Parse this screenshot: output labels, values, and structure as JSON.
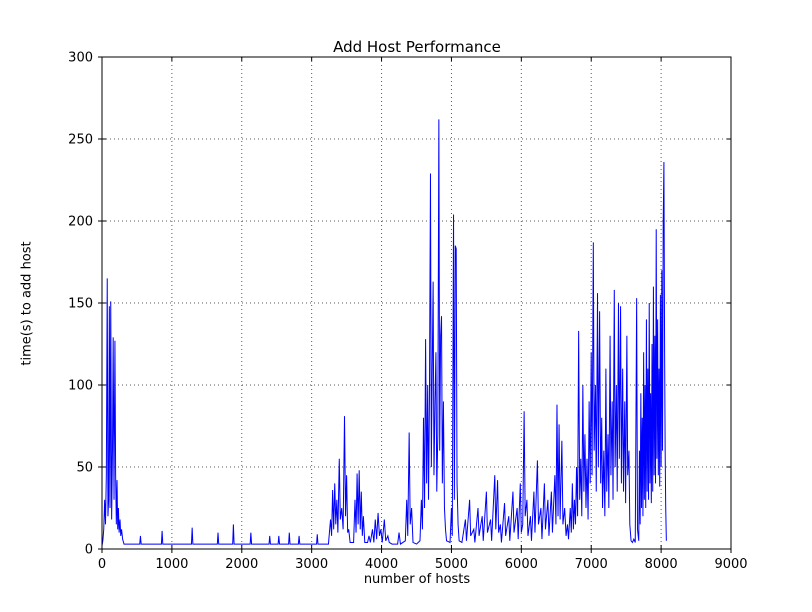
{
  "chart_data": {
    "type": "line",
    "title": "Add Host Performance",
    "xlabel": "number of hosts",
    "ylabel": "time(s) to add host",
    "xlim": [
      0,
      9000
    ],
    "ylim": [
      0,
      300
    ],
    "xticks": [
      0,
      1000,
      2000,
      3000,
      4000,
      5000,
      6000,
      7000,
      8000,
      9000
    ],
    "yticks": [
      0,
      50,
      100,
      150,
      200,
      250,
      300
    ],
    "grid": "dotted",
    "legend": "none",
    "line_color": "#0000ff",
    "frame_color": "#000000",
    "background_color": "#ffffff",
    "points": [
      [
        0,
        2
      ],
      [
        12,
        5
      ],
      [
        25,
        12
      ],
      [
        38,
        30
      ],
      [
        50,
        15
      ],
      [
        62,
        45
      ],
      [
        75,
        165
      ],
      [
        85,
        20
      ],
      [
        95,
        30
      ],
      [
        105,
        148
      ],
      [
        115,
        25
      ],
      [
        125,
        151
      ],
      [
        138,
        18
      ],
      [
        150,
        60
      ],
      [
        160,
        129
      ],
      [
        172,
        30
      ],
      [
        185,
        127
      ],
      [
        195,
        45
      ],
      [
        205,
        15
      ],
      [
        215,
        42
      ],
      [
        225,
        12
      ],
      [
        235,
        25
      ],
      [
        245,
        10
      ],
      [
        258,
        18
      ],
      [
        268,
        8
      ],
      [
        280,
        12
      ],
      [
        295,
        6
      ],
      [
        315,
        3
      ],
      [
        540,
        3
      ],
      [
        550,
        8
      ],
      [
        560,
        3
      ],
      [
        850,
        3
      ],
      [
        860,
        11
      ],
      [
        870,
        3
      ],
      [
        1280,
        3
      ],
      [
        1290,
        13
      ],
      [
        1300,
        3
      ],
      [
        1650,
        3
      ],
      [
        1660,
        10
      ],
      [
        1670,
        3
      ],
      [
        1870,
        3
      ],
      [
        1880,
        15
      ],
      [
        1890,
        3
      ],
      [
        2120,
        3
      ],
      [
        2130,
        10
      ],
      [
        2140,
        3
      ],
      [
        2390,
        3
      ],
      [
        2400,
        8
      ],
      [
        2410,
        3
      ],
      [
        2520,
        3
      ],
      [
        2530,
        8
      ],
      [
        2540,
        3
      ],
      [
        2670,
        3
      ],
      [
        2680,
        10
      ],
      [
        2690,
        3
      ],
      [
        2810,
        3
      ],
      [
        2820,
        8
      ],
      [
        2830,
        3
      ],
      [
        3070,
        3
      ],
      [
        3080,
        9
      ],
      [
        3090,
        3
      ],
      [
        3240,
        3
      ],
      [
        3270,
        18
      ],
      [
        3285,
        8
      ],
      [
        3300,
        36
      ],
      [
        3315,
        12
      ],
      [
        3330,
        40
      ],
      [
        3345,
        15
      ],
      [
        3360,
        30
      ],
      [
        3375,
        10
      ],
      [
        3395,
        55
      ],
      [
        3410,
        18
      ],
      [
        3430,
        25
      ],
      [
        3450,
        12
      ],
      [
        3470,
        81
      ],
      [
        3485,
        20
      ],
      [
        3500,
        45
      ],
      [
        3515,
        10
      ],
      [
        3530,
        12
      ],
      [
        3550,
        4
      ],
      [
        3600,
        4
      ],
      [
        3620,
        30
      ],
      [
        3635,
        10
      ],
      [
        3650,
        46
      ],
      [
        3665,
        15
      ],
      [
        3680,
        48
      ],
      [
        3695,
        12
      ],
      [
        3710,
        35
      ],
      [
        3725,
        8
      ],
      [
        3740,
        20
      ],
      [
        3760,
        4
      ],
      [
        3800,
        4
      ],
      [
        3820,
        8
      ],
      [
        3840,
        4
      ],
      [
        3870,
        12
      ],
      [
        3890,
        4
      ],
      [
        3910,
        18
      ],
      [
        3930,
        6
      ],
      [
        3950,
        22
      ],
      [
        3970,
        8
      ],
      [
        3990,
        12
      ],
      [
        4010,
        4
      ],
      [
        4040,
        18
      ],
      [
        4060,
        5
      ],
      [
        4090,
        8
      ],
      [
        4110,
        4
      ],
      [
        4150,
        3
      ],
      [
        4230,
        3
      ],
      [
        4250,
        10
      ],
      [
        4270,
        3
      ],
      [
        4340,
        5
      ],
      [
        4360,
        30
      ],
      [
        4375,
        8
      ],
      [
        4395,
        71
      ],
      [
        4410,
        15
      ],
      [
        4430,
        25
      ],
      [
        4450,
        4
      ],
      [
        4500,
        3
      ],
      [
        4550,
        5
      ],
      [
        4570,
        30
      ],
      [
        4585,
        12
      ],
      [
        4600,
        80
      ],
      [
        4615,
        25
      ],
      [
        4630,
        128
      ],
      [
        4645,
        40
      ],
      [
        4660,
        100
      ],
      [
        4672,
        30
      ],
      [
        4685,
        90
      ],
      [
        4700,
        229
      ],
      [
        4712,
        50
      ],
      [
        4725,
        110
      ],
      [
        4738,
        163
      ],
      [
        4750,
        45
      ],
      [
        4765,
        90
      ],
      [
        4778,
        120
      ],
      [
        4790,
        35
      ],
      [
        4805,
        70
      ],
      [
        4820,
        262
      ],
      [
        4832,
        60
      ],
      [
        4845,
        130
      ],
      [
        4858,
        142
      ],
      [
        4870,
        40
      ],
      [
        4885,
        90
      ],
      [
        4900,
        25
      ],
      [
        4915,
        12
      ],
      [
        4930,
        5
      ],
      [
        4980,
        4
      ],
      [
        5000,
        25
      ],
      [
        5012,
        8
      ],
      [
        5030,
        204
      ],
      [
        5042,
        30
      ],
      [
        5055,
        185
      ],
      [
        5068,
        183
      ],
      [
        5080,
        40
      ],
      [
        5095,
        15
      ],
      [
        5110,
        5
      ],
      [
        5150,
        4
      ],
      [
        5200,
        18
      ],
      [
        5215,
        5
      ],
      [
        5260,
        30
      ],
      [
        5275,
        8
      ],
      [
        5320,
        12
      ],
      [
        5335,
        4
      ],
      [
        5380,
        25
      ],
      [
        5395,
        8
      ],
      [
        5440,
        20
      ],
      [
        5455,
        5
      ],
      [
        5500,
        35
      ],
      [
        5515,
        10
      ],
      [
        5560,
        18
      ],
      [
        5575,
        5
      ],
      [
        5620,
        45
      ],
      [
        5635,
        12
      ],
      [
        5660,
        42
      ],
      [
        5675,
        10
      ],
      [
        5700,
        15
      ],
      [
        5715,
        4
      ],
      [
        5760,
        28
      ],
      [
        5775,
        8
      ],
      [
        5820,
        20
      ],
      [
        5835,
        5
      ],
      [
        5880,
        35
      ],
      [
        5895,
        10
      ],
      [
        5940,
        25
      ],
      [
        5955,
        6
      ],
      [
        5985,
        40
      ],
      [
        6000,
        10
      ],
      [
        6020,
        15
      ],
      [
        6040,
        84
      ],
      [
        6055,
        20
      ],
      [
        6080,
        30
      ],
      [
        6095,
        8
      ],
      [
        6130,
        20
      ],
      [
        6145,
        5
      ],
      [
        6180,
        35
      ],
      [
        6195,
        10
      ],
      [
        6230,
        54
      ],
      [
        6245,
        15
      ],
      [
        6280,
        25
      ],
      [
        6295,
        6
      ],
      [
        6330,
        40
      ],
      [
        6345,
        12
      ],
      [
        6380,
        30
      ],
      [
        6395,
        8
      ],
      [
        6430,
        35
      ],
      [
        6445,
        10
      ],
      [
        6480,
        45
      ],
      [
        6495,
        15
      ],
      [
        6510,
        88
      ],
      [
        6525,
        20
      ],
      [
        6540,
        76
      ],
      [
        6555,
        18
      ],
      [
        6580,
        66
      ],
      [
        6595,
        15
      ],
      [
        6620,
        25
      ],
      [
        6640,
        8
      ],
      [
        6660,
        15
      ],
      [
        6675,
        6
      ],
      [
        6700,
        25
      ],
      [
        6715,
        10
      ],
      [
        6730,
        40
      ],
      [
        6745,
        12
      ],
      [
        6760,
        30
      ],
      [
        6775,
        15
      ],
      [
        6790,
        50
      ],
      [
        6805,
        20
      ],
      [
        6820,
        133
      ],
      [
        6835,
        30
      ],
      [
        6850,
        55
      ],
      [
        6865,
        20
      ],
      [
        6880,
        100
      ],
      [
        6895,
        35
      ],
      [
        6910,
        70
      ],
      [
        6925,
        25
      ],
      [
        6940,
        55
      ],
      [
        6955,
        18
      ],
      [
        6970,
        90
      ],
      [
        6985,
        40
      ],
      [
        7000,
        120
      ],
      [
        7012,
        45
      ],
      [
        7030,
        187
      ],
      [
        7042,
        60
      ],
      [
        7060,
        100
      ],
      [
        7072,
        35
      ],
      [
        7090,
        156
      ],
      [
        7102,
        50
      ],
      [
        7120,
        145
      ],
      [
        7135,
        40
      ],
      [
        7150,
        80
      ],
      [
        7162,
        25
      ],
      [
        7180,
        60
      ],
      [
        7195,
        20
      ],
      [
        7210,
        110
      ],
      [
        7222,
        35
      ],
      [
        7240,
        70
      ],
      [
        7252,
        25
      ],
      [
        7270,
        130
      ],
      [
        7282,
        45
      ],
      [
        7300,
        90
      ],
      [
        7312,
        30
      ],
      [
        7330,
        158
      ],
      [
        7342,
        50
      ],
      [
        7360,
        100
      ],
      [
        7372,
        35
      ],
      [
        7390,
        150
      ],
      [
        7402,
        55
      ],
      [
        7420,
        148
      ],
      [
        7432,
        40
      ],
      [
        7450,
        110
      ],
      [
        7462,
        35
      ],
      [
        7480,
        90
      ],
      [
        7492,
        28
      ],
      [
        7510,
        130
      ],
      [
        7522,
        45
      ],
      [
        7540,
        60
      ],
      [
        7552,
        15
      ],
      [
        7570,
        5
      ],
      [
        7590,
        4
      ],
      [
        7610,
        6
      ],
      [
        7630,
        4
      ],
      [
        7650,
        153
      ],
      [
        7662,
        12
      ],
      [
        7680,
        5
      ],
      [
        7690,
        60
      ],
      [
        7700,
        15
      ],
      [
        7710,
        95
      ],
      [
        7720,
        25
      ],
      [
        7730,
        80
      ],
      [
        7740,
        20
      ],
      [
        7750,
        120
      ],
      [
        7760,
        30
      ],
      [
        7770,
        100
      ],
      [
        7780,
        25
      ],
      [
        7790,
        140
      ],
      [
        7800,
        35
      ],
      [
        7810,
        110
      ],
      [
        7820,
        30
      ],
      [
        7830,
        150
      ],
      [
        7840,
        40
      ],
      [
        7850,
        95
      ],
      [
        7860,
        28
      ],
      [
        7870,
        125
      ],
      [
        7880,
        35
      ],
      [
        7890,
        160
      ],
      [
        7900,
        45
      ],
      [
        7910,
        130
      ],
      [
        7920,
        40
      ],
      [
        7930,
        195
      ],
      [
        7940,
        55
      ],
      [
        7950,
        140
      ],
      [
        7960,
        45
      ],
      [
        7970,
        110
      ],
      [
        7980,
        38
      ],
      [
        7990,
        155
      ],
      [
        8000,
        50
      ],
      [
        8010,
        170
      ],
      [
        8020,
        60
      ],
      [
        8030,
        199
      ],
      [
        8040,
        236
      ],
      [
        8050,
        120
      ],
      [
        8058,
        60
      ],
      [
        8066,
        25
      ],
      [
        8075,
        5
      ]
    ]
  }
}
